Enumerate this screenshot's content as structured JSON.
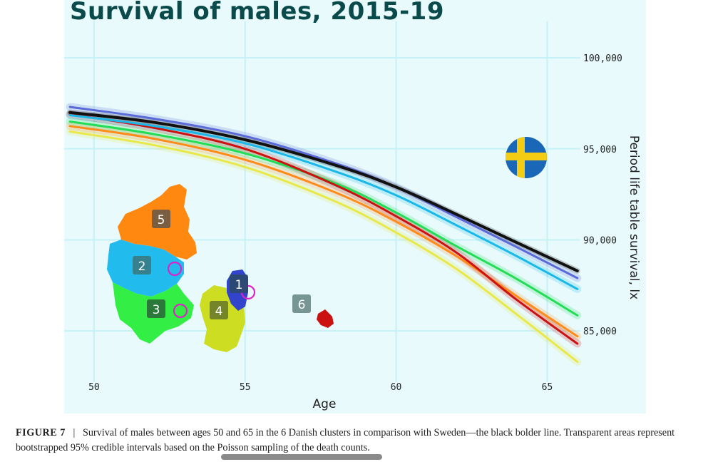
{
  "chart_data": {
    "type": "line",
    "title": "Survival of males, 2015-19",
    "xlabel": "Age",
    "ylabel": "Period life table survival, lx",
    "xlim": [
      49.2,
      66.1
    ],
    "ylim": [
      82500,
      102000
    ],
    "x_ticks": [
      50,
      55,
      60,
      65
    ],
    "x_tick_labels": [
      "50",
      "55",
      "60",
      "65"
    ],
    "y_ticks": [
      85000,
      90000,
      95000,
      100000
    ],
    "y_tick_labels": [
      "85,000",
      "90,000",
      "95,000",
      "100,000"
    ],
    "y_axis_side": "right",
    "grid": true,
    "legend": "none",
    "series": [
      {
        "color": "#e8e84a",
        "x": [
          49.2,
          52,
          55,
          58,
          60,
          62,
          64,
          66
        ],
        "y": [
          95950,
          95200,
          94000,
          92100,
          90400,
          88400,
          85900,
          83300
        ]
      },
      {
        "color": "#ff8c1a",
        "x": [
          49.2,
          52,
          55,
          58,
          60,
          62,
          64,
          66
        ],
        "y": [
          96250,
          95550,
          94400,
          92600,
          91000,
          89100,
          86900,
          84700
        ]
      },
      {
        "color": "#22dd55",
        "x": [
          49.2,
          52,
          55,
          58,
          60,
          62,
          64,
          66
        ],
        "y": [
          96500,
          95800,
          94750,
          93100,
          91500,
          89650,
          87850,
          85850
        ]
      },
      {
        "color": "#cc1111",
        "x": [
          49.2,
          52,
          55,
          58,
          60,
          62,
          64,
          66
        ],
        "y": [
          96900,
          96150,
          95000,
          93000,
          91300,
          89300,
          86700,
          84300
        ]
      },
      {
        "color": "#1ab8e8",
        "x": [
          49.2,
          52,
          55,
          58,
          60,
          62,
          64,
          66
        ],
        "y": [
          96850,
          96250,
          95300,
          93750,
          92450,
          90800,
          89100,
          87300
        ]
      },
      {
        "color": "#5a6ad8",
        "x": [
          49.2,
          52,
          55,
          58,
          60,
          62,
          64,
          66
        ],
        "y": [
          97300,
          96650,
          95700,
          94200,
          92900,
          91250,
          89600,
          87900
        ]
      },
      {
        "color": "#111111",
        "x": [
          49.2,
          52,
          55,
          58,
          60,
          62,
          64,
          66
        ],
        "y": [
          97000,
          96450,
          95500,
          94100,
          92900,
          91400,
          89850,
          88300
        ]
      }
    ],
    "annotations": {
      "map_labels": [
        "1",
        "2",
        "3",
        "4",
        "5",
        "6"
      ],
      "region_colors": [
        "#3344cc",
        "#22bbee",
        "#33ee44",
        "#ccdd22",
        "#ff8811",
        "#cc1111"
      ],
      "flag": "sweden-flag"
    }
  },
  "caption": {
    "figure_label": "FIGURE 7",
    "separator": "|",
    "text": "Survival of males between ages 50 and 65 in the 6 Danish clusters in comparison with Sweden—the black bolder line. Transparent areas represent bootstrapped 95% credible intervals based on the Poisson sampling of the death counts."
  }
}
